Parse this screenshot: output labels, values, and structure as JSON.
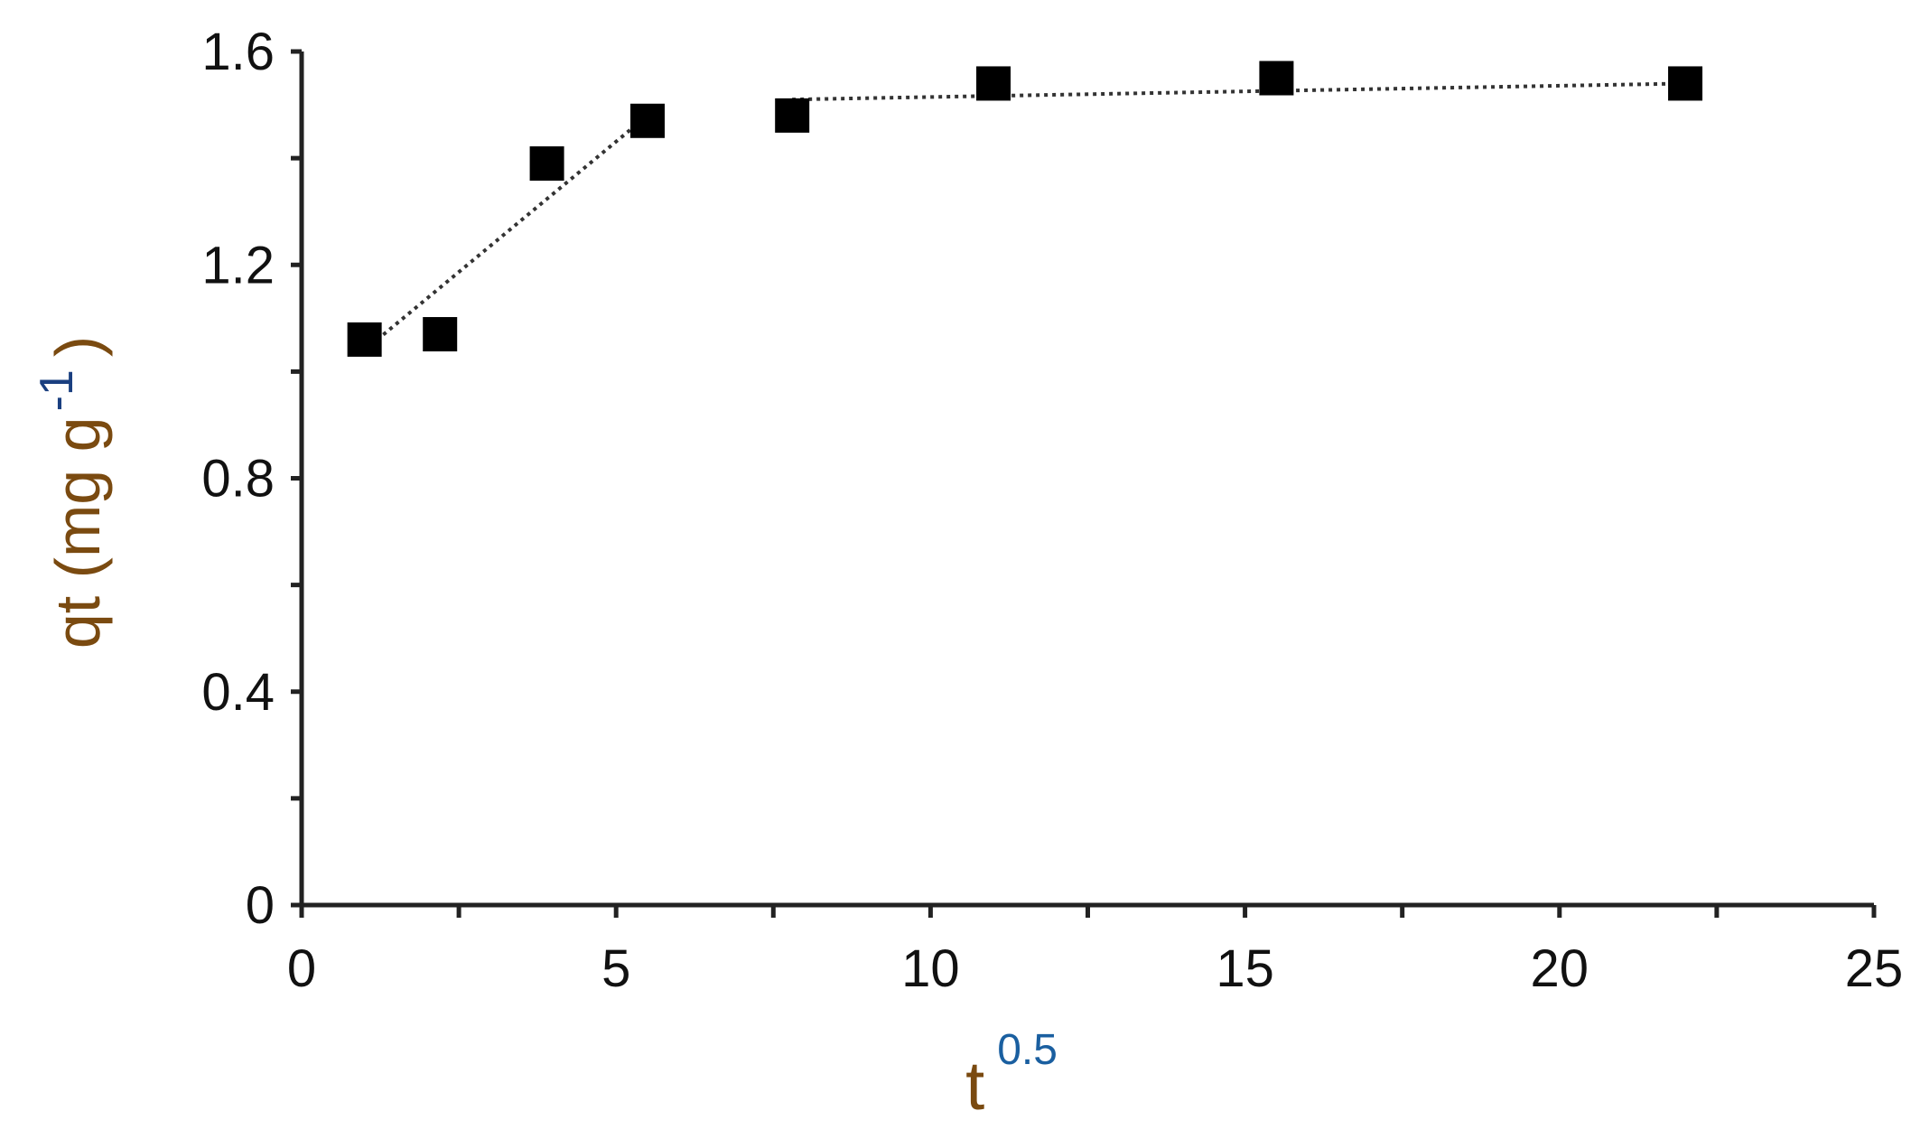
{
  "chart_data": {
    "type": "scatter",
    "x": [
      1,
      2.2,
      3.9,
      5.5,
      7.8,
      11,
      15.5,
      22
    ],
    "series": [
      {
        "color": "#000000",
        "values": [
          1.06,
          1.07,
          1.39,
          1.47,
          1.48,
          1.54,
          1.55,
          1.54
        ]
      }
    ],
    "fit_lines": [
      {
        "x": [
          1,
          5.5
        ],
        "values": [
          1.04,
          1.48
        ]
      },
      {
        "x": [
          7.8,
          22
        ],
        "values": [
          1.51,
          1.54
        ]
      }
    ],
    "xlim": [
      0,
      25
    ],
    "xticks": [
      0,
      5,
      10,
      15,
      20,
      25
    ],
    "x_minor_ticks": [
      2.5,
      7.5,
      12.5,
      17.5,
      22.5
    ],
    "ylim": [
      0,
      1.6
    ],
    "yticks": [
      0,
      0.4,
      0.8,
      1.2,
      1.6
    ],
    "y_minor_ticks": [
      0.2,
      0.6,
      1.0,
      1.4
    ],
    "x_label": "t",
    "x_label_sup": "0.5",
    "y_label": "qt (mg g",
    "y_label_sup": "-1",
    "y_label_end": ")"
  }
}
